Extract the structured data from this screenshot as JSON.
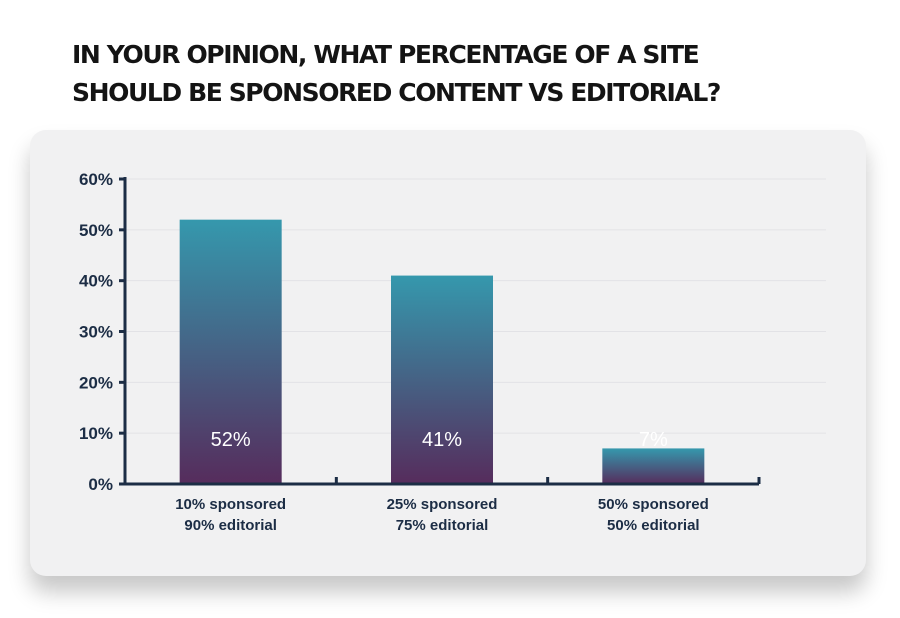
{
  "title_lines": [
    "IN YOUR OPINION, WHAT PERCENTAGE OF A SITE",
    "SHOULD BE SPONSORED CONTENT VS EDITORIAL?"
  ],
  "colors": {
    "bar_top": "#3598ad",
    "bar_bottom": "#562c5c",
    "axis": "#1c2d45",
    "grid": "#e2e2e6",
    "card": "#f1f1f2"
  },
  "chart_data": {
    "type": "bar",
    "title": "IN YOUR OPINION, WHAT PERCENTAGE OF A SITE SHOULD BE SPONSORED CONTENT VS EDITORIAL?",
    "categories": [
      [
        "10% sponsored",
        "90% editorial"
      ],
      [
        "25% sponsored",
        "75% editorial"
      ],
      [
        "50% sponsored",
        "50% editorial"
      ]
    ],
    "values": [
      52,
      41,
      7
    ],
    "data_labels": [
      "52%",
      "41%",
      "7%"
    ],
    "ylim": [
      0,
      60
    ],
    "yticks": [
      0,
      10,
      20,
      30,
      40,
      50,
      60
    ],
    "ytick_labels": [
      "0%",
      "10%",
      "20%",
      "30%",
      "40%",
      "50%",
      "60%"
    ],
    "grid": true,
    "legend": "none"
  }
}
